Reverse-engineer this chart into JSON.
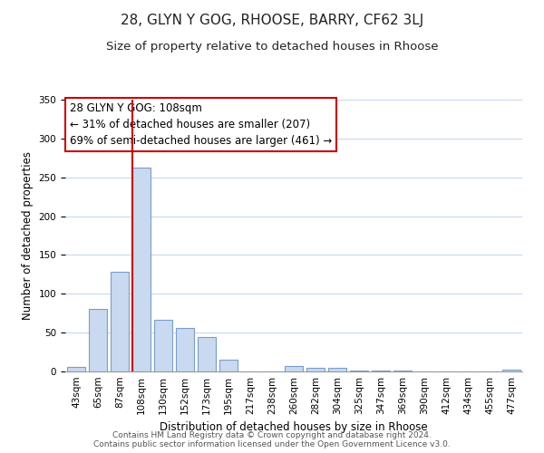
{
  "title": "28, GLYN Y GOG, RHOOSE, BARRY, CF62 3LJ",
  "subtitle": "Size of property relative to detached houses in Rhoose",
  "xlabel": "Distribution of detached houses by size in Rhoose",
  "ylabel": "Number of detached properties",
  "bar_labels": [
    "43sqm",
    "65sqm",
    "87sqm",
    "108sqm",
    "130sqm",
    "152sqm",
    "173sqm",
    "195sqm",
    "217sqm",
    "238sqm",
    "260sqm",
    "282sqm",
    "304sqm",
    "325sqm",
    "347sqm",
    "369sqm",
    "390sqm",
    "412sqm",
    "434sqm",
    "455sqm",
    "477sqm"
  ],
  "bar_values": [
    6,
    81,
    128,
    263,
    67,
    56,
    44,
    15,
    0,
    0,
    7,
    5,
    5,
    1,
    1,
    1,
    0,
    0,
    0,
    0,
    2
  ],
  "bar_color": "#c9d9f0",
  "bar_edge_color": "#7a9ec8",
  "vline_color": "#cc0000",
  "annotation_title": "28 GLYN Y GOG: 108sqm",
  "annotation_line1": "← 31% of detached houses are smaller (207)",
  "annotation_line2": "69% of semi-detached houses are larger (461) →",
  "annotation_box_color": "#ffffff",
  "annotation_box_edge": "#cc0000",
  "ylim": [
    0,
    350
  ],
  "yticks": [
    0,
    50,
    100,
    150,
    200,
    250,
    300,
    350
  ],
  "footer1": "Contains HM Land Registry data © Crown copyright and database right 2024.",
  "footer2": "Contains public sector information licensed under the Open Government Licence v3.0.",
  "bg_color": "#ffffff",
  "grid_color": "#c8d8ef",
  "title_fontsize": 11,
  "subtitle_fontsize": 9.5,
  "axis_label_fontsize": 8.5,
  "tick_fontsize": 7.5,
  "annotation_fontsize": 8.5,
  "footer_fontsize": 6.5
}
